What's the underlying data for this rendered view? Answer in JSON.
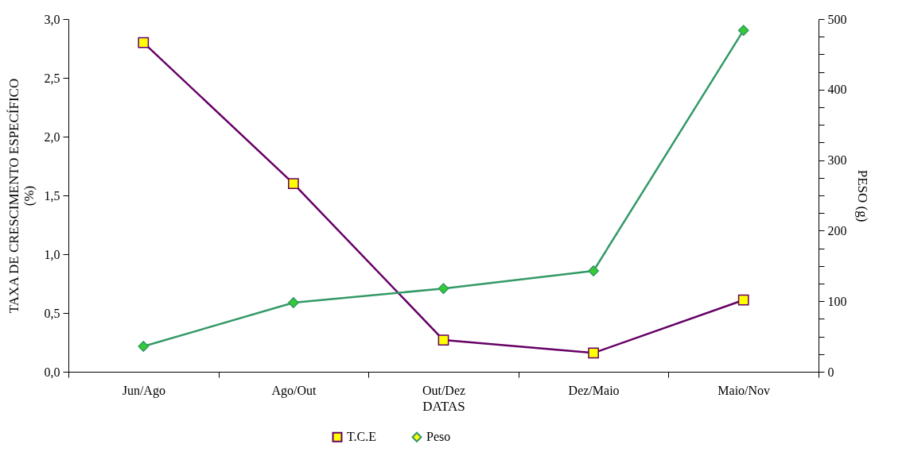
{
  "chart_data": {
    "type": "line",
    "xlabel": "DATAS",
    "ylabel": "TAXA DE CRESCIMENTO ESPECÍFICO\n(%)",
    "y2label": "PESO (g)",
    "categories": [
      "Jun/Ago",
      "Ago/Out",
      "Out/Dez",
      "Dez/Maio",
      "Maio/Nov"
    ],
    "series": [
      {
        "name": "T.C.E",
        "color": "#660066",
        "marker": "square",
        "values": [
          2.8,
          1.6,
          0.27,
          0.16,
          0.61
        ]
      },
      {
        "name": "Peso",
        "color": "#339966",
        "marker": "diamond",
        "axis": "y2",
        "values": [
          36,
          98,
          118,
          143,
          484
        ]
      }
    ],
    "ylim": [
      0,
      3
    ],
    "yticks": [
      {
        "value": 0,
        "label": "0,0"
      },
      {
        "value": 0.5,
        "label": "0,5"
      },
      {
        "value": 1,
        "label": "1,0"
      },
      {
        "value": 1.5,
        "label": "1,5"
      },
      {
        "value": 2,
        "label": "2,0"
      },
      {
        "value": 2.5,
        "label": "2,5"
      },
      {
        "value": 3,
        "label": "3,0"
      }
    ],
    "y2lim": [
      0,
      500
    ],
    "y2ticks": [
      0,
      {
        "value": 25,
        "label": null
      },
      {
        "value": 50,
        "label": null
      },
      {
        "value": 75,
        "label": null
      },
      100,
      {
        "value": 125,
        "label": null
      },
      {
        "value": 150,
        "label": null
      },
      {
        "value": 175,
        "label": null
      },
      200,
      {
        "value": 225,
        "label": null
      },
      {
        "value": 250,
        "label": null
      },
      {
        "value": 275,
        "label": null
      },
      300,
      {
        "value": 325,
        "label": null
      },
      {
        "value": 350,
        "label": null
      },
      {
        "value": 375,
        "label": null
      },
      400,
      {
        "value": 425,
        "label": null
      },
      {
        "value": 450,
        "label": null
      },
      {
        "value": 475,
        "label": null
      },
      500
    ],
    "legend": "bottom",
    "grid": false
  }
}
